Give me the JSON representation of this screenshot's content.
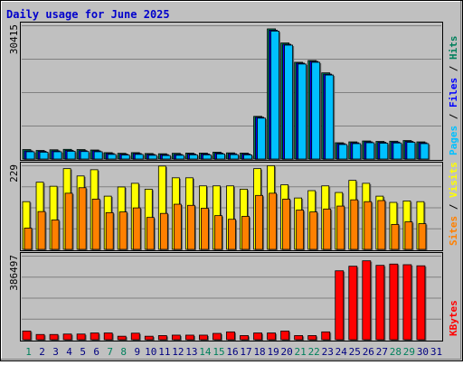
{
  "title": "Daily usage for June 2025",
  "colors": {
    "background": "#c0c0c0",
    "title": "#0000cc",
    "hits": "#00805c",
    "files": "#0000ff",
    "pages": "#00c0ff",
    "visits": "#ffff00",
    "sites": "#ff8000",
    "kbytes": "#ff0000",
    "weekend": "#00805c",
    "weekday": "#000080"
  },
  "chart_data": [
    {
      "type": "bar",
      "ytick": "30415",
      "legend": [
        {
          "label": "Hits",
          "color": "#00805c"
        },
        {
          "label": "Files",
          "color": "#0000ff"
        },
        {
          "label": "Pages",
          "color": "#00c0ff"
        }
      ],
      "categories": [
        "1",
        "2",
        "3",
        "4",
        "5",
        "6",
        "7",
        "8",
        "9",
        "10",
        "11",
        "12",
        "13",
        "14",
        "15",
        "16",
        "17",
        "18",
        "19",
        "20",
        "21",
        "22",
        "23",
        "24",
        "25",
        "26",
        "27",
        "28",
        "29",
        "30",
        "31"
      ],
      "series": [
        {
          "name": "Hits",
          "values": [
            2150,
            1950,
            2100,
            2200,
            2150,
            2050,
            1450,
            1300,
            1450,
            1250,
            1200,
            1300,
            1350,
            1350,
            1550,
            1400,
            1350,
            9700,
            29600,
            26400,
            22000,
            22400,
            19600,
            3700,
            3900,
            4100,
            4000,
            4050,
            4200,
            3900,
            0
          ]
        },
        {
          "name": "Files",
          "values": [
            1850,
            1750,
            1850,
            1950,
            1900,
            1850,
            1250,
            1100,
            1250,
            1050,
            1000,
            1050,
            1150,
            1150,
            1350,
            1200,
            1150,
            9500,
            29300,
            26100,
            21800,
            22200,
            19300,
            3500,
            3700,
            3900,
            3800,
            3850,
            4000,
            3700,
            0
          ]
        },
        {
          "name": "Pages",
          "values": [
            1650,
            1550,
            1650,
            1750,
            1700,
            1650,
            1050,
            900,
            1050,
            850,
            800,
            850,
            950,
            950,
            1150,
            1000,
            950,
            9300,
            29100,
            25900,
            21600,
            22000,
            19100,
            3300,
            3500,
            3700,
            3600,
            3650,
            3800,
            3500,
            0
          ]
        }
      ],
      "ylim": [
        0,
        30415
      ]
    },
    {
      "type": "bar",
      "ytick": "229",
      "legend": [
        {
          "label": "Visits",
          "color": "#ffff00"
        },
        {
          "label": "Sites",
          "color": "#ff8000"
        }
      ],
      "categories": [
        "1",
        "2",
        "3",
        "4",
        "5",
        "6",
        "7",
        "8",
        "9",
        "10",
        "11",
        "12",
        "13",
        "14",
        "15",
        "16",
        "17",
        "18",
        "19",
        "20",
        "21",
        "22",
        "23",
        "24",
        "25",
        "26",
        "27",
        "28",
        "29",
        "30",
        "31"
      ],
      "series": [
        {
          "name": "Visits",
          "values": [
            130,
            183,
            172,
            220,
            200,
            217,
            145,
            170,
            180,
            164,
            227,
            195,
            195,
            173,
            173,
            173,
            164,
            220,
            228,
            176,
            140,
            160,
            173,
            155,
            188,
            180,
            145,
            128,
            132,
            130,
            0
          ]
        },
        {
          "name": "Sites",
          "values": [
            58,
            103,
            80,
            153,
            168,
            137,
            100,
            102,
            113,
            87,
            98,
            123,
            120,
            112,
            92,
            82,
            90,
            147,
            153,
            137,
            107,
            102,
            110,
            118,
            135,
            130,
            133,
            68,
            75,
            70,
            0
          ]
        }
      ],
      "ylim": [
        0,
        229
      ]
    },
    {
      "type": "bar",
      "ytick": "386497",
      "legend": [
        {
          "label": "KBytes",
          "color": "#ff0000"
        }
      ],
      "categories": [
        "1",
        "2",
        "3",
        "4",
        "5",
        "6",
        "7",
        "8",
        "9",
        "10",
        "11",
        "12",
        "13",
        "14",
        "15",
        "16",
        "17",
        "18",
        "19",
        "20",
        "21",
        "22",
        "23",
        "24",
        "25",
        "26",
        "27",
        "28",
        "29",
        "30",
        "31"
      ],
      "series": [
        {
          "name": "KBytes",
          "values": [
            40000,
            24000,
            24000,
            26000,
            26000,
            31000,
            31000,
            16000,
            30000,
            16000,
            19000,
            21000,
            21000,
            21000,
            29000,
            36000,
            19000,
            31000,
            31000,
            40000,
            19000,
            19000,
            36000,
            317000,
            338000,
            363000,
            342000,
            348000,
            345000,
            340000,
            0
          ]
        }
      ],
      "ylim": [
        0,
        386497
      ]
    }
  ],
  "days": [
    {
      "label": "1",
      "weekend": true
    },
    {
      "label": "2",
      "weekend": false
    },
    {
      "label": "3",
      "weekend": false
    },
    {
      "label": "4",
      "weekend": false
    },
    {
      "label": "5",
      "weekend": false
    },
    {
      "label": "6",
      "weekend": false
    },
    {
      "label": "7",
      "weekend": true
    },
    {
      "label": "8",
      "weekend": true
    },
    {
      "label": "9",
      "weekend": false
    },
    {
      "label": "10",
      "weekend": false
    },
    {
      "label": "11",
      "weekend": false
    },
    {
      "label": "12",
      "weekend": false
    },
    {
      "label": "13",
      "weekend": false
    },
    {
      "label": "14",
      "weekend": true
    },
    {
      "label": "15",
      "weekend": true
    },
    {
      "label": "16",
      "weekend": false
    },
    {
      "label": "17",
      "weekend": false
    },
    {
      "label": "18",
      "weekend": false
    },
    {
      "label": "19",
      "weekend": false
    },
    {
      "label": "20",
      "weekend": false
    },
    {
      "label": "21",
      "weekend": true
    },
    {
      "label": "22",
      "weekend": true
    },
    {
      "label": "23",
      "weekend": false
    },
    {
      "label": "24",
      "weekend": false
    },
    {
      "label": "25",
      "weekend": false
    },
    {
      "label": "26",
      "weekend": false
    },
    {
      "label": "27",
      "weekend": false
    },
    {
      "label": "28",
      "weekend": true
    },
    {
      "label": "29",
      "weekend": true
    },
    {
      "label": "30",
      "weekend": false
    },
    {
      "label": "31",
      "weekend": false
    }
  ]
}
